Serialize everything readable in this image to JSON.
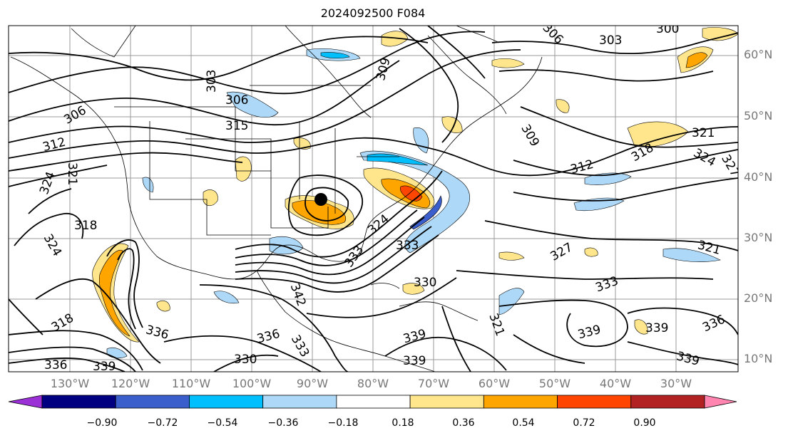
{
  "title": "2024092500 F084",
  "lat_labels": [
    "60°N",
    "50°N",
    "40°N",
    "30°N",
    "20°N",
    "10°N"
  ],
  "lon_labels": [
    "130°W",
    "120°W",
    "110°W",
    "100°W",
    "90°W",
    "80°W",
    "70°W",
    "60°W",
    "50°W",
    "40°W",
    "30°W"
  ],
  "colorbar": {
    "ticks": [
      "−0.90",
      "−0.72",
      "−0.54",
      "−0.36",
      "−0.18",
      "0.18",
      "0.36",
      "0.54",
      "0.72",
      "0.90"
    ],
    "colors": [
      "#9b30d6",
      "#000080",
      "#3a5ecc",
      "#00bfff",
      "#add8f7",
      "#ffffff",
      "#ffe68c",
      "#ffa500",
      "#ff4500",
      "#b22222",
      "#ff85b0"
    ]
  },
  "contour_labels": [
    "303",
    "306",
    "309",
    "312",
    "315",
    "318",
    "321",
    "324",
    "327",
    "330",
    "333",
    "336",
    "339",
    "342"
  ],
  "storm_marker": "black-dot"
}
